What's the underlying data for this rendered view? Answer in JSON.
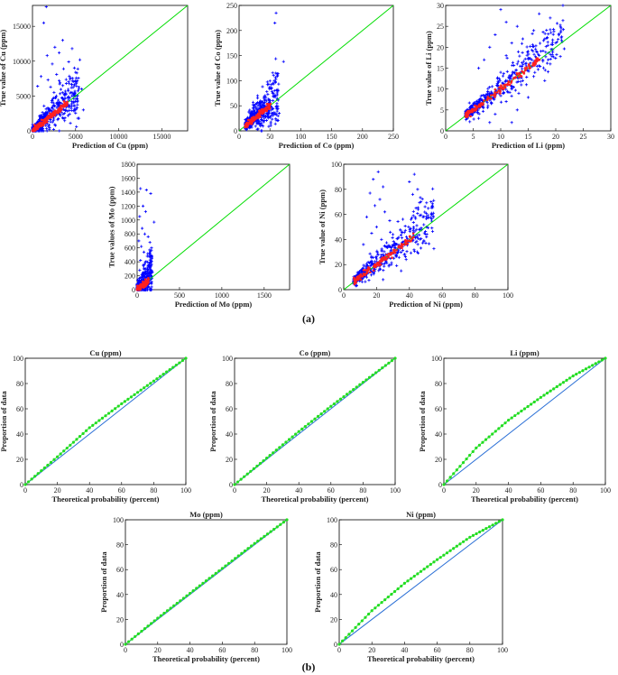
{
  "figure": {
    "part_a_label": "(a)",
    "part_b_label": "(b)"
  },
  "colors": {
    "scatter_points": "#0000ff",
    "scatter_dense": "#ff2020",
    "reference_line": "#00dd00",
    "qq_points": "#22dd22",
    "qq_line": "#2a6fd6",
    "axis": "#000000"
  },
  "chart_data": [
    {
      "type": "scatter",
      "element": "Cu",
      "title": "",
      "xlabel": "Prediction of Cu (ppm)",
      "ylabel": "True value of Cu (ppm)",
      "xlim": [
        0,
        18000
      ],
      "ylim": [
        0,
        18000
      ],
      "xticks": [
        0,
        5000,
        10000,
        15000
      ],
      "yticks": [
        0,
        5000,
        10000,
        15000
      ],
      "reference_line": "y = x",
      "outliers": [
        [
          1600,
          17800
        ],
        [
          1300,
          15500
        ],
        [
          3500,
          13000
        ],
        [
          2600,
          12000
        ],
        [
          4600,
          11800
        ],
        [
          3100,
          11200
        ],
        [
          1700,
          10800
        ],
        [
          5500,
          10200
        ],
        [
          4200,
          9900
        ],
        [
          2300,
          9600
        ],
        [
          3600,
          8900
        ],
        [
          5000,
          8400
        ],
        [
          2800,
          8100
        ],
        [
          1000,
          7800
        ],
        [
          4400,
          7600
        ],
        [
          1800,
          7300
        ],
        [
          3200,
          6900
        ],
        [
          600,
          6400
        ],
        [
          2100,
          6300
        ],
        [
          5700,
          6000
        ],
        [
          3800,
          5700
        ],
        [
          2500,
          5500
        ],
        [
          5200,
          5100
        ],
        [
          4100,
          4700
        ],
        [
          3000,
          4400
        ],
        [
          4800,
          3600
        ],
        [
          5900,
          3000
        ],
        [
          3700,
          2500
        ],
        [
          5400,
          1800
        ],
        [
          4400,
          1100
        ],
        [
          2600,
          900
        ],
        [
          5100,
          600
        ]
      ]
    },
    {
      "type": "scatter",
      "element": "Co",
      "title": "",
      "xlabel": "Prediction of Co (ppm)",
      "ylabel": "True value of Co (ppm)",
      "xlim": [
        0,
        250
      ],
      "ylim": [
        0,
        250
      ],
      "xticks": [
        0,
        50,
        100,
        150,
        200,
        250
      ],
      "yticks": [
        0,
        50,
        100,
        150,
        200,
        250
      ],
      "reference_line": "y = x",
      "outliers": [
        [
          60,
          235
        ],
        [
          58,
          215
        ],
        [
          72,
          138
        ],
        [
          57,
          100
        ],
        [
          48,
          93
        ],
        [
          38,
          88
        ],
        [
          53,
          85
        ],
        [
          45,
          78
        ],
        [
          62,
          72
        ],
        [
          30,
          70
        ],
        [
          40,
          65
        ],
        [
          55,
          60
        ],
        [
          35,
          58
        ],
        [
          50,
          52
        ],
        [
          60,
          48
        ],
        [
          25,
          50
        ],
        [
          45,
          44
        ],
        [
          38,
          40
        ],
        [
          65,
          35
        ],
        [
          48,
          28
        ],
        [
          40,
          18
        ],
        [
          30,
          15
        ]
      ]
    },
    {
      "type": "scatter",
      "element": "Li",
      "title": "",
      "xlabel": "Prediction of Li (ppm)",
      "ylabel": "True value of Li (ppm)",
      "xlim": [
        0,
        30
      ],
      "ylim": [
        0,
        30
      ],
      "xticks": [
        0,
        5,
        10,
        15,
        20,
        25,
        30
      ],
      "yticks": [
        0,
        5,
        10,
        15,
        20,
        25,
        30
      ],
      "reference_line": "y = x",
      "outliers": [
        [
          10,
          29
        ],
        [
          17,
          28
        ],
        [
          11,
          26
        ],
        [
          19,
          27
        ],
        [
          13,
          25
        ],
        [
          16,
          24
        ],
        [
          9,
          23
        ],
        [
          14,
          22
        ],
        [
          12,
          21
        ],
        [
          18,
          22
        ],
        [
          8,
          20
        ],
        [
          15,
          19
        ],
        [
          20,
          21
        ],
        [
          11,
          18
        ],
        [
          7,
          17
        ],
        [
          17,
          18
        ],
        [
          13,
          16
        ],
        [
          6,
          15
        ],
        [
          19,
          16
        ],
        [
          10,
          14
        ],
        [
          16,
          13
        ],
        [
          14,
          12
        ],
        [
          12,
          10
        ],
        [
          18,
          12
        ],
        [
          8,
          9
        ],
        [
          15,
          8
        ],
        [
          11,
          7
        ],
        [
          13,
          5
        ],
        [
          9,
          4
        ],
        [
          6,
          3
        ],
        [
          12,
          2
        ],
        [
          8,
          2
        ]
      ]
    },
    {
      "type": "scatter",
      "element": "Mo",
      "title": "",
      "xlabel": "Prediction of Mo (ppm)",
      "ylabel": "True values of Mo (ppm)",
      "xlim": [
        0,
        1800
      ],
      "ylim": [
        0,
        1800
      ],
      "xticks": [
        0,
        500,
        1000,
        1500
      ],
      "yticks": [
        0,
        200,
        400,
        600,
        800,
        1000,
        1200,
        1400,
        1600,
        1800
      ],
      "reference_line": "y = x",
      "outliers": [
        [
          40,
          1450
        ],
        [
          110,
          1430
        ],
        [
          160,
          1380
        ],
        [
          70,
          1200
        ],
        [
          100,
          1120
        ],
        [
          30,
          1050
        ],
        [
          200,
          970
        ],
        [
          60,
          880
        ],
        [
          90,
          800
        ],
        [
          130,
          760
        ],
        [
          20,
          700
        ],
        [
          50,
          620
        ],
        [
          170,
          600
        ],
        [
          80,
          540
        ],
        [
          120,
          480
        ],
        [
          40,
          420
        ],
        [
          150,
          380
        ],
        [
          70,
          350
        ],
        [
          100,
          300
        ],
        [
          30,
          280
        ],
        [
          180,
          250
        ],
        [
          60,
          220
        ],
        [
          130,
          190
        ],
        [
          90,
          150
        ]
      ]
    },
    {
      "type": "scatter",
      "element": "Ni",
      "title": "",
      "xlabel": "Prediction of Ni (ppm)",
      "ylabel": "True value of Ni (ppm)",
      "xlim": [
        0,
        100
      ],
      "ylim": [
        0,
        100
      ],
      "xticks": [
        0,
        20,
        40,
        60,
        80,
        100
      ],
      "yticks": [
        0,
        20,
        40,
        60,
        80,
        100
      ],
      "reference_line": "y = x",
      "outliers": [
        [
          21,
          94
        ],
        [
          43,
          92
        ],
        [
          18,
          88
        ],
        [
          40,
          86
        ],
        [
          24,
          82
        ],
        [
          45,
          80
        ],
        [
          16,
          77
        ],
        [
          42,
          76
        ],
        [
          22,
          72
        ],
        [
          47,
          70
        ],
        [
          19,
          67
        ],
        [
          44,
          65
        ],
        [
          25,
          62
        ],
        [
          14,
          58
        ],
        [
          41,
          56
        ],
        [
          28,
          55
        ],
        [
          20,
          50
        ],
        [
          46,
          48
        ],
        [
          17,
          45
        ],
        [
          30,
          44
        ],
        [
          23,
          40
        ],
        [
          36,
          38
        ],
        [
          12,
          36
        ],
        [
          26,
          34
        ],
        [
          33,
          30
        ],
        [
          21,
          28
        ],
        [
          38,
          24
        ],
        [
          16,
          22
        ],
        [
          29,
          20
        ],
        [
          35,
          15
        ],
        [
          14,
          10
        ],
        [
          24,
          8
        ]
      ]
    },
    {
      "type": "qq",
      "element": "Cu",
      "title": "Cu (ppm)",
      "xlabel": "Theoretical probability (percent)",
      "ylabel": "Proportion of data",
      "xlim": [
        0,
        100
      ],
      "ylim": [
        0,
        100
      ],
      "xticks": [
        0,
        20,
        40,
        60,
        80,
        100
      ],
      "yticks": [
        0,
        20,
        40,
        60,
        80,
        100
      ],
      "x": [
        0,
        20,
        40,
        60,
        80,
        100
      ],
      "y": [
        0,
        22,
        45,
        64,
        82,
        100
      ]
    },
    {
      "type": "qq",
      "element": "Co",
      "title": "Co (ppm)",
      "xlabel": "Theoretical probability (percent)",
      "ylabel": "Proportion of data",
      "xlim": [
        0,
        100
      ],
      "ylim": [
        0,
        100
      ],
      "xticks": [
        0,
        20,
        40,
        60,
        80,
        100
      ],
      "yticks": [
        0,
        20,
        40,
        60,
        80,
        100
      ],
      "x": [
        0,
        20,
        40,
        60,
        80,
        100
      ],
      "y": [
        0,
        21,
        42,
        62,
        81,
        100
      ]
    },
    {
      "type": "qq",
      "element": "Li",
      "title": "Li (ppm)",
      "xlabel": "Theoretical probability (percent)",
      "ylabel": "Proportion of data",
      "xlim": [
        0,
        100
      ],
      "ylim": [
        0,
        100
      ],
      "xticks": [
        0,
        20,
        40,
        60,
        80,
        100
      ],
      "yticks": [
        0,
        20,
        40,
        60,
        80,
        100
      ],
      "x": [
        0,
        20,
        40,
        60,
        80,
        100
      ],
      "y": [
        0,
        29,
        51,
        69,
        86,
        100
      ]
    },
    {
      "type": "qq",
      "element": "Mo",
      "title": "Mo (ppm)",
      "xlabel": "Theoretical probability (percent)",
      "ylabel": "Proportion of data",
      "xlim": [
        0,
        100
      ],
      "ylim": [
        0,
        100
      ],
      "xticks": [
        0,
        20,
        40,
        60,
        80,
        100
      ],
      "yticks": [
        0,
        20,
        40,
        60,
        80,
        100
      ],
      "x": [
        0,
        20,
        40,
        60,
        80,
        100
      ],
      "y": [
        0,
        21,
        41,
        61,
        81,
        100
      ]
    },
    {
      "type": "qq",
      "element": "Ni",
      "title": "Ni (ppm)",
      "xlabel": "Theoretical probability (percent)",
      "ylabel": "Proportion of data",
      "xlim": [
        0,
        100
      ],
      "ylim": [
        0,
        100
      ],
      "xticks": [
        0,
        20,
        40,
        60,
        80,
        100
      ],
      "yticks": [
        0,
        20,
        40,
        60,
        80,
        100
      ],
      "x": [
        0,
        20,
        40,
        60,
        80,
        100
      ],
      "y": [
        0,
        27,
        49,
        68,
        86,
        100
      ]
    }
  ]
}
